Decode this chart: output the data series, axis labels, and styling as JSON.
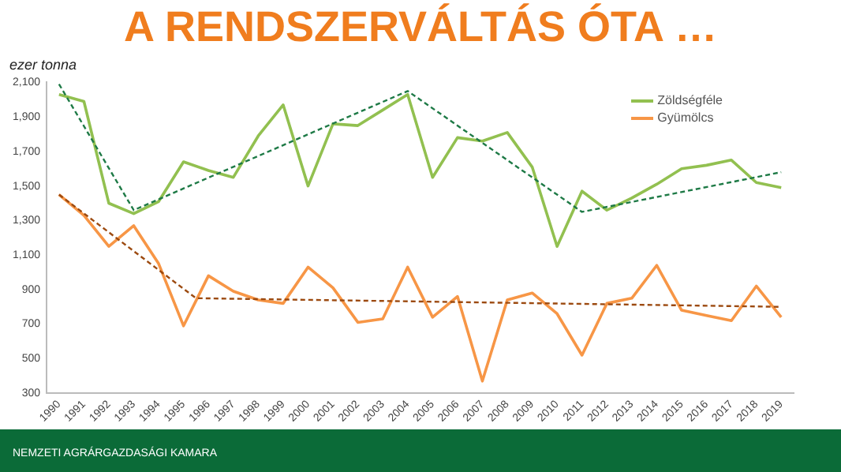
{
  "chart_data": {
    "type": "line",
    "title": "A RENDSZERVÁLTÁS ÓTA …",
    "ylabel": "ezer tonna",
    "x": [
      1990,
      1991,
      1992,
      1993,
      1994,
      1995,
      1996,
      1997,
      1998,
      1999,
      2000,
      2001,
      2002,
      2003,
      2004,
      2005,
      2006,
      2007,
      2008,
      2009,
      2010,
      2011,
      2012,
      2013,
      2014,
      2015,
      2016,
      2017,
      2018,
      2019
    ],
    "xlim": [
      1989.5,
      2019.5
    ],
    "xticks": [
      1990,
      1991,
      1992,
      1993,
      1994,
      1995,
      1996,
      1997,
      1998,
      1999,
      2000,
      2001,
      2002,
      2003,
      2004,
      2005,
      2006,
      2007,
      2008,
      2009,
      2010,
      2011,
      2012,
      2013,
      2014,
      2015,
      2016,
      2017,
      2018,
      2019
    ],
    "series": [
      {
        "name": "Zöldségféle",
        "color": "#92c050",
        "values": [
          2030,
          1990,
          1400,
          1340,
          1410,
          1640,
          1590,
          1550,
          1790,
          1970,
          1500,
          1860,
          1850,
          1940,
          2030,
          1550,
          1780,
          1760,
          1810,
          1610,
          1150,
          1470,
          1360,
          1430,
          1510,
          1600,
          1620,
          1650,
          1520,
          1490
        ]
      },
      {
        "name": "Gyümölcs",
        "color": "#f79646",
        "values": [
          1450,
          1330,
          1150,
          1270,
          1050,
          690,
          980,
          890,
          840,
          820,
          1030,
          910,
          710,
          730,
          1030,
          740,
          860,
          370,
          840,
          880,
          760,
          520,
          820,
          850,
          1040,
          780,
          750,
          720,
          920,
          740
        ]
      },
      {
        "type": "line",
        "color": "#1e7a46",
        "line_style": "dashed",
        "x": [
          1990,
          1993,
          2004,
          2011,
          2019
        ],
        "values": [
          2090,
          1360,
          2050,
          1350,
          1580
        ]
      },
      {
        "type": "line",
        "color": "#9c4a10",
        "line_style": "dashed",
        "x": [
          1990,
          1995.5,
          2019
        ],
        "values": [
          1450,
          850,
          800
        ]
      }
    ],
    "ylim": [
      300,
      2100
    ],
    "yticks": [
      {
        "value": 300,
        "label": "300"
      },
      {
        "value": 500,
        "label": "500"
      },
      {
        "value": 700,
        "label": "700"
      },
      {
        "value": 900,
        "label": "900"
      },
      {
        "value": 1100,
        "label": "1,100"
      },
      {
        "value": 1300,
        "label": "1,300"
      },
      {
        "value": 1500,
        "label": "1,500"
      },
      {
        "value": 1700,
        "label": "1,700"
      },
      {
        "value": 1900,
        "label": "1,900"
      },
      {
        "value": 2100,
        "label": "2,100"
      }
    ],
    "grid": false,
    "legend": "top right",
    "marker": "none",
    "line_style": "solid",
    "annotations": [
      "NEMZETI AGRÁRGAZDASÁGI KAMARA"
    ]
  }
}
